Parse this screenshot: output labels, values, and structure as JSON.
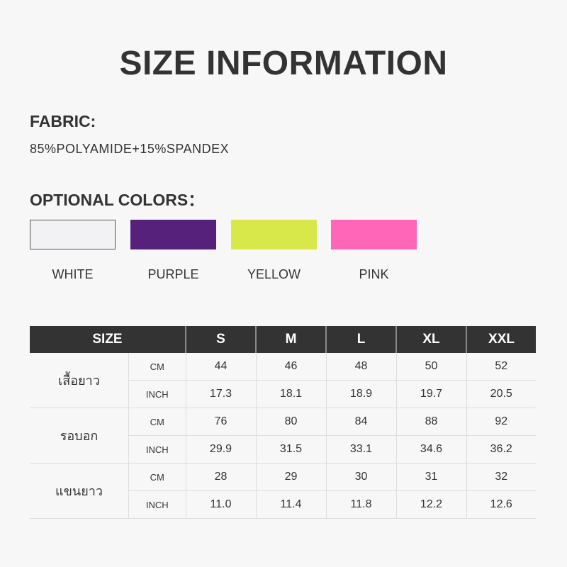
{
  "title": "SIZE INFORMATION",
  "fabric": {
    "label": "FABRIC:",
    "value": "85%POLYAMIDE+15%SPANDEX"
  },
  "colors": {
    "label": "OPTIONAL COLORS：",
    "items": [
      {
        "name": "WHITE",
        "hex": "#f2f2f4"
      },
      {
        "name": "PURPLE",
        "hex": "#55217a"
      },
      {
        "name": "YELLOW",
        "hex": "#d8e84a"
      },
      {
        "name": "PINK",
        "hex": "#ff66b8"
      }
    ]
  },
  "table": {
    "headers": [
      "SIZE",
      "S",
      "M",
      "L",
      "XL",
      "XXL"
    ],
    "groups": [
      {
        "name": "เสื้อยาว",
        "rows": [
          {
            "unit": "CM",
            "values": [
              "44",
              "46",
              "48",
              "50",
              "52"
            ]
          },
          {
            "unit": "INCH",
            "values": [
              "17.3",
              "18.1",
              "18.9",
              "19.7",
              "20.5"
            ]
          }
        ]
      },
      {
        "name": "รอบอก",
        "rows": [
          {
            "unit": "CM",
            "values": [
              "76",
              "80",
              "84",
              "88",
              "92"
            ]
          },
          {
            "unit": "INCH",
            "values": [
              "29.9",
              "31.5",
              "33.1",
              "34.6",
              "36.2"
            ]
          }
        ]
      },
      {
        "name": "แขนยาว",
        "rows": [
          {
            "unit": "CM",
            "values": [
              "28",
              "29",
              "30",
              "31",
              "32"
            ]
          },
          {
            "unit": "INCH",
            "values": [
              "11.0",
              "11.4",
              "11.8",
              "12.2",
              "12.6"
            ]
          }
        ]
      }
    ]
  }
}
